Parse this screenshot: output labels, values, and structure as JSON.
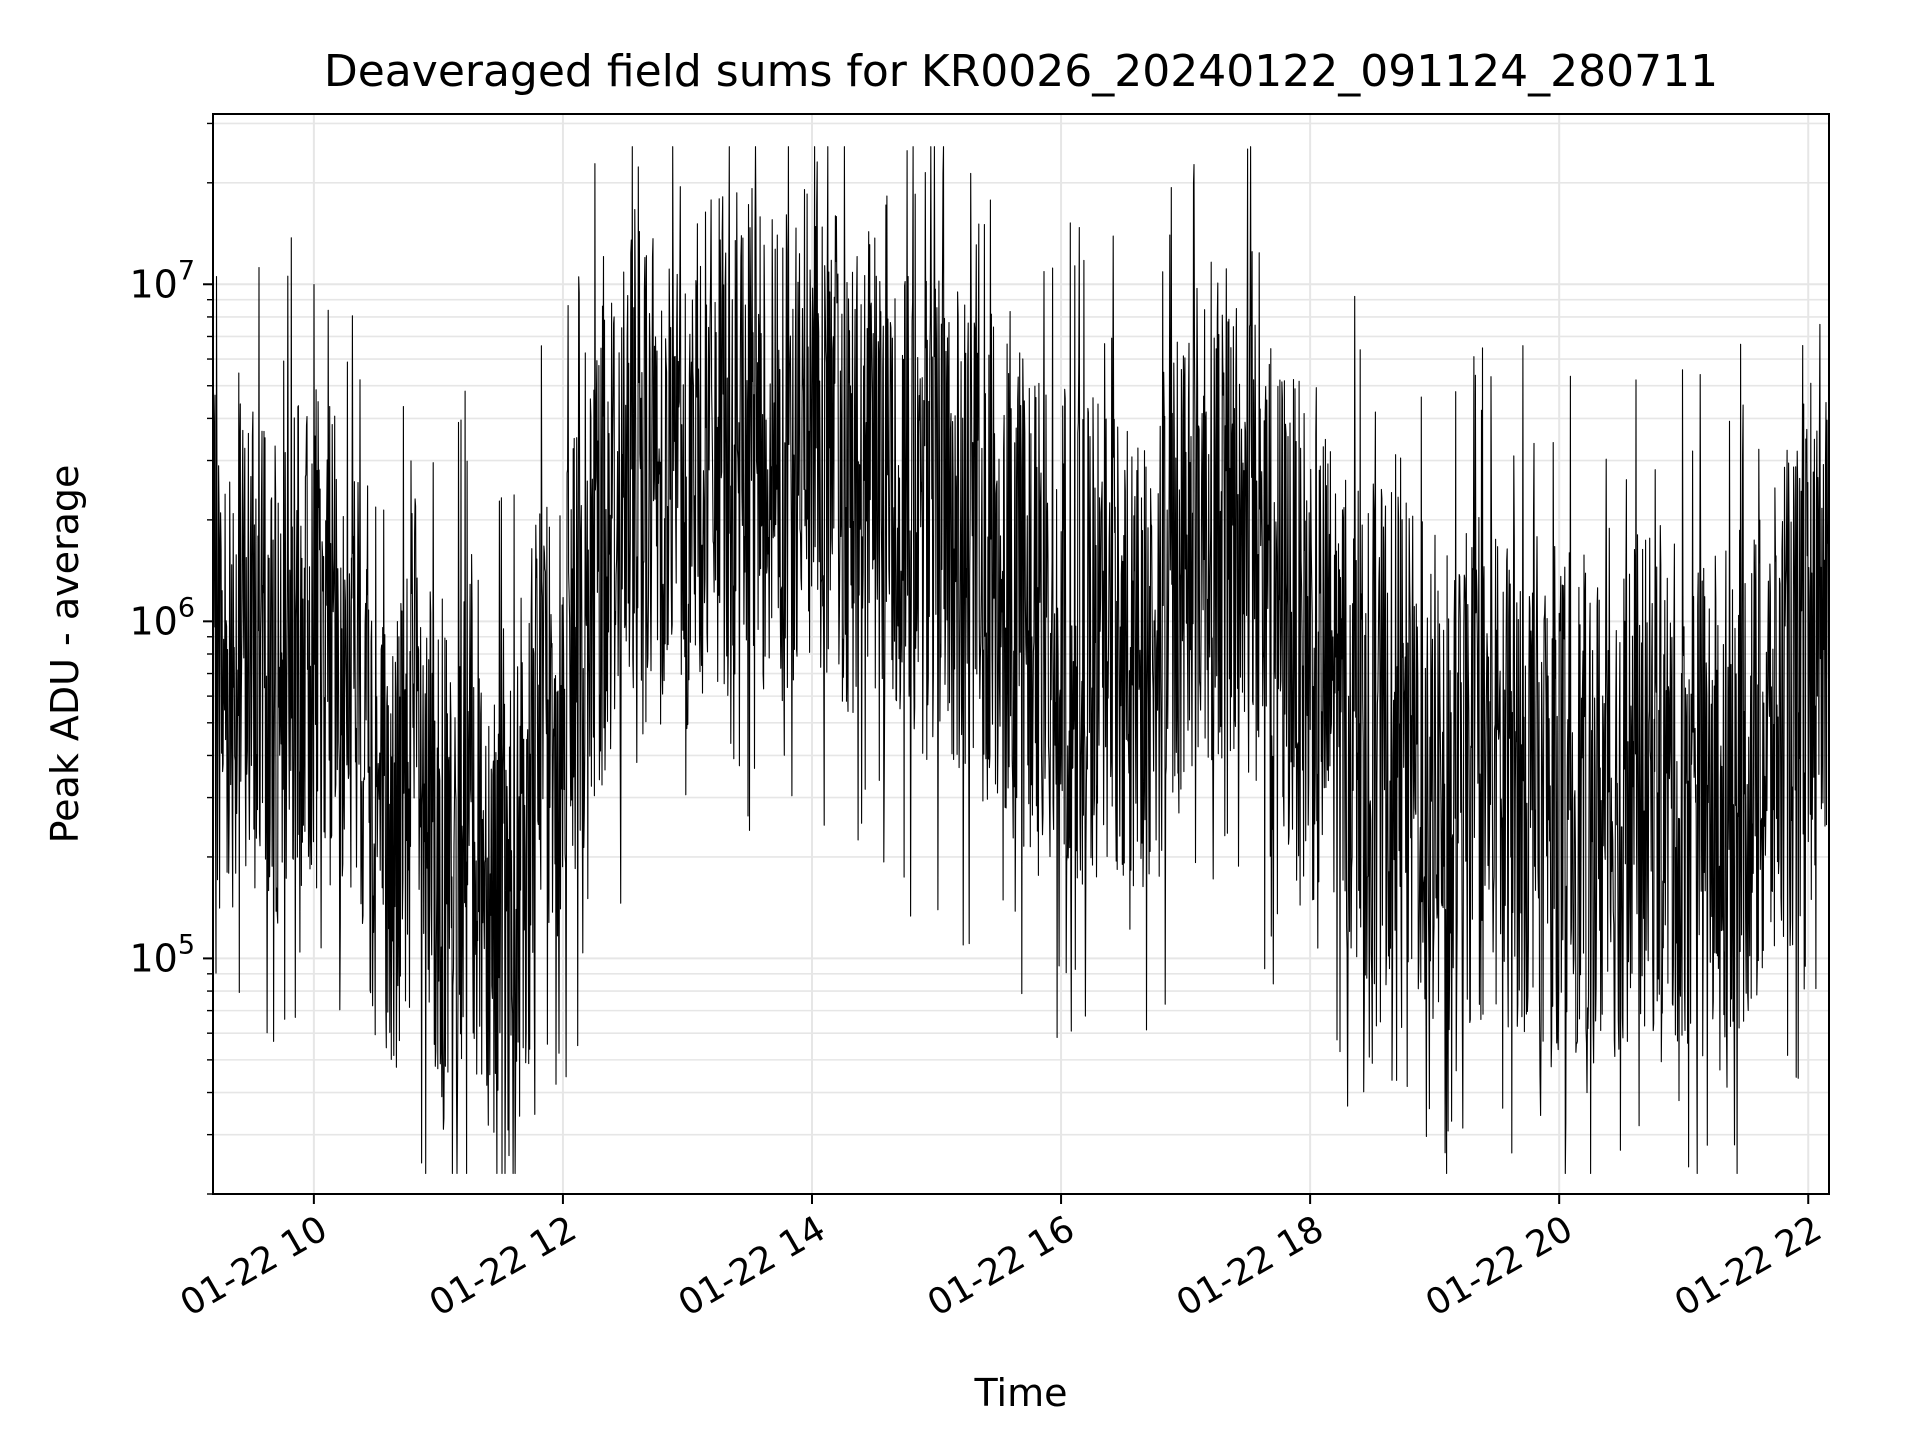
{
  "chart_data": {
    "type": "line",
    "title": "Deaveraged field sums for KR0026_20240122_091124_280711",
    "xlabel": "Time",
    "ylabel": "Peak ADU - average",
    "xlim": [
      "2024-01-22T09:11:24",
      "2024-01-22T22:10:00"
    ],
    "ylim": [
      20000,
      32000000
    ],
    "yscale": "log",
    "grid": true,
    "grid_minor": true,
    "legend": "none",
    "line_color": "#000000",
    "x_ticks": [
      "01-22 10",
      "01-22 12",
      "01-22 14",
      "01-22 16",
      "01-22 18",
      "01-22 20",
      "01-22 22"
    ],
    "x_tick_hours": [
      10,
      12,
      14,
      16,
      18,
      20,
      22
    ],
    "y_ticks": [
      {
        "value": 100000,
        "base": "10",
        "exponent": "5"
      },
      {
        "value": 1000000,
        "base": "10",
        "exponent": "6"
      },
      {
        "value": 10000000,
        "base": "10",
        "exponent": "7"
      }
    ],
    "x_time_unit": "hours since 2024-01-22 00:00",
    "series": [
      {
        "name": "",
        "x": [
          9.19,
          9.25,
          9.35,
          9.45,
          9.6,
          9.75,
          9.9,
          10.05,
          10.2,
          10.35,
          10.5,
          10.6,
          10.7,
          10.8,
          10.95,
          11.1,
          11.25,
          11.4,
          11.55,
          11.65,
          11.75,
          11.9,
          12.0,
          12.1,
          12.25,
          12.4,
          12.6,
          12.8,
          13.0,
          13.2,
          13.4,
          13.6,
          13.8,
          14.0,
          14.2,
          14.4,
          14.6,
          14.8,
          15.0,
          15.2,
          15.4,
          15.6,
          15.8,
          16.0,
          16.2,
          16.4,
          16.6,
          16.8,
          17.0,
          17.2,
          17.4,
          17.6,
          17.8,
          18.0,
          18.2,
          18.4,
          18.6,
          18.8,
          19.0,
          19.2,
          19.4,
          19.6,
          19.8,
          20.0,
          20.2,
          20.4,
          20.6,
          20.8,
          21.0,
          21.2,
          21.4,
          21.6,
          21.8,
          22.0,
          22.15
        ],
        "y": [
          900000,
          700000,
          800000,
          900000,
          650000,
          700000,
          800000,
          900000,
          650000,
          600000,
          300000,
          180000,
          250000,
          500000,
          200000,
          150000,
          300000,
          180000,
          150000,
          120000,
          350000,
          700000,
          600000,
          800000,
          1500000,
          2200000,
          2500000,
          2800000,
          2600000,
          3200000,
          3500000,
          3400000,
          3200000,
          3600000,
          3000000,
          2700000,
          2300000,
          2100000,
          1900000,
          1700000,
          1500000,
          1300000,
          1000000,
          900000,
          800000,
          900000,
          850000,
          900000,
          1800000,
          2200000,
          1900000,
          1500000,
          1100000,
          800000,
          650000,
          500000,
          450000,
          400000,
          330000,
          320000,
          350000,
          340000,
          330000,
          300000,
          280000,
          260000,
          330000,
          320000,
          300000,
          280000,
          330000,
          350000,
          500000,
          700000,
          800000
        ]
      }
    ]
  }
}
